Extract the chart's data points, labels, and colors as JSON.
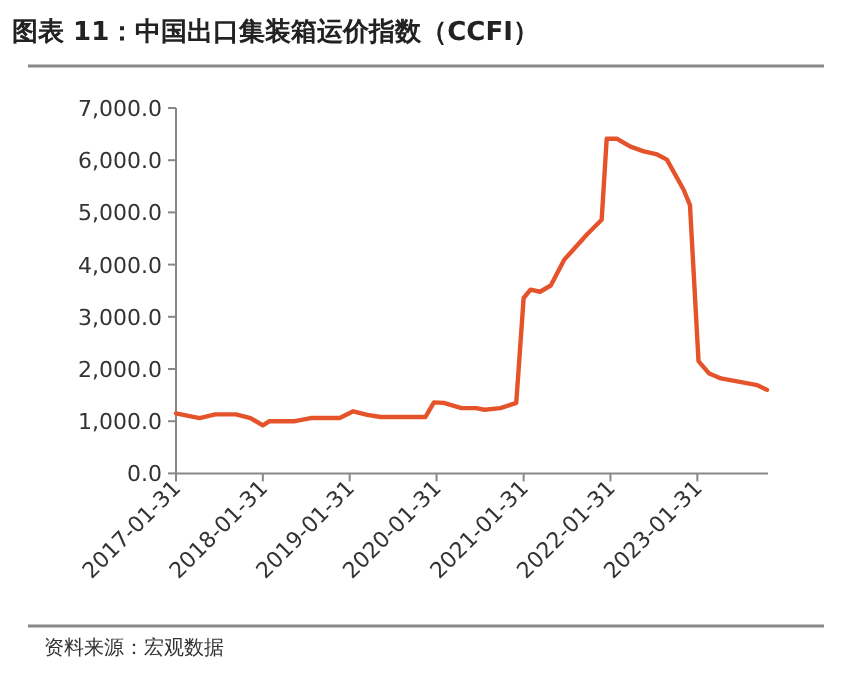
{
  "chart_data": {
    "type": "line",
    "title": "图表 11：中国出口集装箱运价指数（CCFI）",
    "annotations": [
      "资料来源：宏观数据"
    ],
    "x": [
      "2017-01-31",
      "2017-05-10",
      "2017-07-15",
      "2017-10-10",
      "2017-12-10",
      "2018-01-31",
      "2018-02-28",
      "2018-06-15",
      "2018-08-20",
      "2018-12-20",
      "2019-02-15",
      "2019-04-15",
      "2019-06-10",
      "2019-12-15",
      "2020-01-20",
      "2020-03-01",
      "2020-05-15",
      "2020-07-15",
      "2020-08-20",
      "2020-10-25",
      "2020-12-31",
      "2021-01-31",
      "2021-03-01",
      "2021-04-10",
      "2021-05-25",
      "2021-07-20",
      "2021-10-25",
      "2021-12-25",
      "2022-01-15",
      "2022-02-28",
      "2022-04-25",
      "2022-06-20",
      "2022-08-15",
      "2022-09-25",
      "2022-12-05",
      "2022-12-31",
      "2023-02-05",
      "2023-03-20",
      "2023-05-10",
      "2023-10-10",
      "2023-11-20"
    ],
    "series": [
      {
        "color": "#e5532b",
        "values": [
          1150,
          1060,
          1130,
          1130,
          1060,
          920,
          1000,
          1000,
          1060,
          1060,
          1190,
          1120,
          1080,
          1080,
          1360,
          1350,
          1250,
          1250,
          1220,
          1250,
          1350,
          3360,
          3520,
          3480,
          3600,
          4090,
          4580,
          4860,
          6410,
          6410,
          6260,
          6170,
          6110,
          6010,
          5430,
          5140,
          2150,
          1920,
          1820,
          1690,
          1600
        ]
      }
    ],
    "xlim": [
      "2017-01-31",
      "2023-11-24"
    ],
    "xticks": [
      "2017-01-31",
      "2018-01-31",
      "2019-01-31",
      "2020-01-31",
      "2021-01-31",
      "2022-01-31",
      "2023-01-31"
    ],
    "ylim": [
      0,
      7000
    ],
    "yticks": [
      {
        "value": 0,
        "label": "0.0"
      },
      {
        "value": 1000,
        "label": "1,000.0"
      },
      {
        "value": 2000,
        "label": "2,000.0"
      },
      {
        "value": 3000,
        "label": "3,000.0"
      },
      {
        "value": 4000,
        "label": "4,000.0"
      },
      {
        "value": 5000,
        "label": "5,000.0"
      },
      {
        "value": 6000,
        "label": "6,000.0"
      },
      {
        "value": 7000,
        "label": "7,000.0"
      }
    ],
    "line_style": "solid"
  }
}
